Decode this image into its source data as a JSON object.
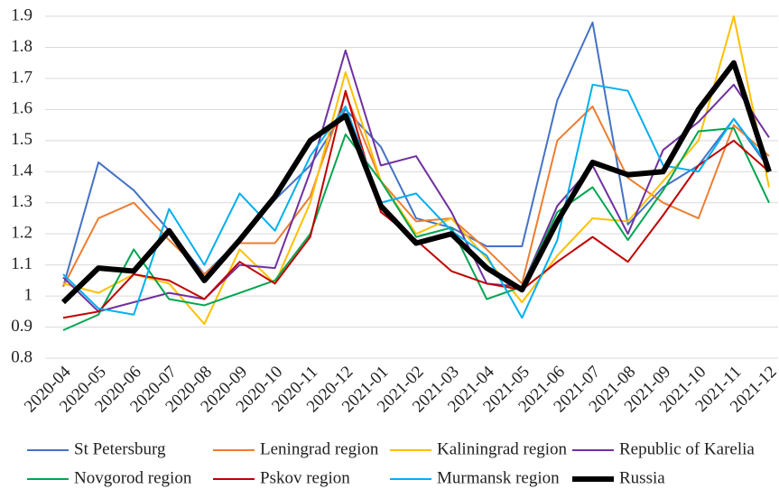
{
  "chart_data": {
    "type": "line",
    "categories": [
      "2020-04",
      "2020-05",
      "2020-06",
      "2020-07",
      "2020-08",
      "2020-09",
      "2020-10",
      "2020-11",
      "2020-12",
      "2021-01",
      "2021-02",
      "2021-03",
      "2021-04",
      "2021-05",
      "2021-06",
      "2021-07",
      "2021-08",
      "2021-09",
      "2021-10",
      "2021-11",
      "2021-12"
    ],
    "series": [
      {
        "name": "St Petersburg",
        "color": "#4472c4",
        "width": 2,
        "values": [
          1.03,
          1.43,
          1.34,
          1.21,
          1.07,
          1.18,
          1.31,
          1.42,
          1.6,
          1.48,
          1.25,
          1.22,
          1.16,
          1.16,
          1.63,
          1.88,
          1.23,
          1.35,
          1.42,
          1.57,
          1.41
        ]
      },
      {
        "name": "Leningrad region",
        "color": "#ed7d31",
        "width": 2,
        "values": [
          1.03,
          1.25,
          1.3,
          1.18,
          1.07,
          1.17,
          1.17,
          1.32,
          1.65,
          1.37,
          1.24,
          1.25,
          1.15,
          1.04,
          1.5,
          1.61,
          1.38,
          1.3,
          1.25,
          1.55,
          1.45
        ]
      },
      {
        "name": "Kaliningrad region",
        "color": "#ffc000",
        "width": 2,
        "values": [
          1.04,
          1.01,
          1.07,
          1.04,
          0.91,
          1.15,
          1.04,
          1.3,
          1.72,
          1.37,
          1.2,
          1.25,
          1.12,
          0.98,
          1.13,
          1.25,
          1.24,
          1.37,
          1.5,
          1.9,
          1.35
        ]
      },
      {
        "name": "Republic of Karelia",
        "color": "#7030a0",
        "width": 2,
        "values": [
          1.06,
          0.95,
          0.98,
          1.01,
          0.99,
          1.1,
          1.09,
          1.4,
          1.79,
          1.42,
          1.45,
          1.27,
          1.04,
          1.03,
          1.29,
          1.42,
          1.2,
          1.47,
          1.56,
          1.68,
          1.51
        ]
      },
      {
        "name": "Novgorod region",
        "color": "#00a650",
        "width": 2,
        "values": [
          0.89,
          0.94,
          1.15,
          0.99,
          0.97,
          1.01,
          1.05,
          1.2,
          1.52,
          1.37,
          1.19,
          1.22,
          0.99,
          1.03,
          1.27,
          1.35,
          1.18,
          1.34,
          1.53,
          1.54,
          1.3
        ]
      },
      {
        "name": "Pskov region",
        "color": "#c00000",
        "width": 2,
        "values": [
          0.93,
          0.95,
          1.07,
          1.05,
          0.99,
          1.11,
          1.04,
          1.19,
          1.66,
          1.27,
          1.18,
          1.08,
          1.04,
          1.02,
          1.11,
          1.19,
          1.11,
          1.26,
          1.42,
          1.5,
          1.4
        ]
      },
      {
        "name": "Murmansk region",
        "color": "#00b0f0",
        "width": 2,
        "values": [
          1.07,
          0.96,
          0.94,
          1.28,
          1.1,
          1.33,
          1.21,
          1.45,
          1.61,
          1.3,
          1.33,
          1.21,
          1.13,
          0.93,
          1.18,
          1.68,
          1.66,
          1.42,
          1.4,
          1.57,
          1.42
        ]
      },
      {
        "name": "Russia",
        "color": "#000000",
        "width": 6,
        "values": [
          0.98,
          1.09,
          1.08,
          1.21,
          1.05,
          1.18,
          1.32,
          1.5,
          1.58,
          1.29,
          1.17,
          1.2,
          1.09,
          1.02,
          1.24,
          1.43,
          1.39,
          1.4,
          1.6,
          1.75,
          1.4
        ]
      }
    ],
    "ylim": [
      0.8,
      1.9
    ],
    "yticks": [
      0.8,
      0.9,
      1,
      1.1,
      1.2,
      1.3,
      1.4,
      1.5,
      1.6,
      1.7,
      1.8,
      1.9
    ],
    "grid": true,
    "legend": "bottom"
  }
}
